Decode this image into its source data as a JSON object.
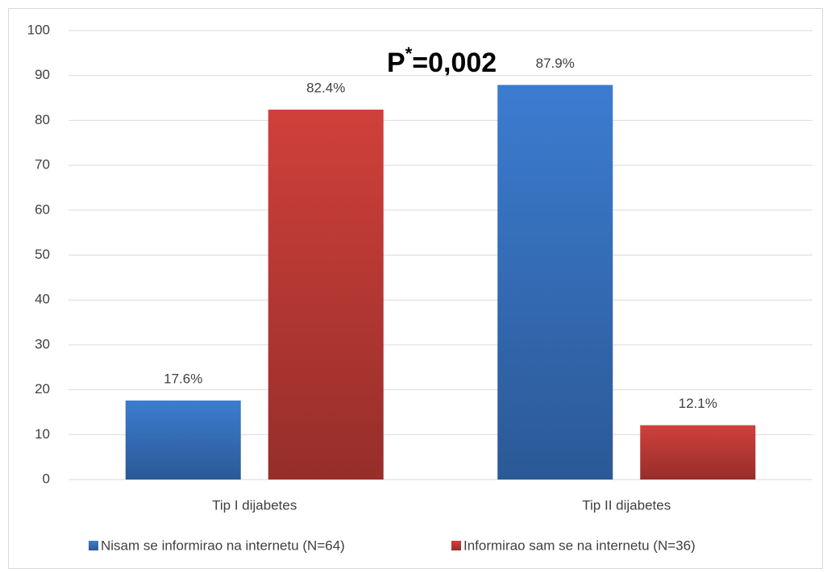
{
  "chart_data": {
    "type": "bar",
    "categories": [
      "Tip I dijabetes",
      "Tip II dijabetes"
    ],
    "series": [
      {
        "name": "Nisam se informirao na internetu (N=64)",
        "color": "#3c7cd0",
        "values": [
          17.6,
          87.9
        ],
        "value_labels": [
          "17.6%",
          "87.9%"
        ]
      },
      {
        "name": "Informirao sam se na internetu (N=36)",
        "color": "#d0403b",
        "values": [
          82.4,
          12.1
        ],
        "value_labels": [
          "82.4%",
          "12.1%"
        ]
      }
    ],
    "annotation": [
      "P",
      "*",
      "=0,002"
    ],
    "ylim": [
      0,
      100
    ],
    "yticks": [
      0,
      10,
      20,
      30,
      40,
      50,
      60,
      70,
      80,
      90,
      100
    ],
    "grid": true,
    "legend": "bottom"
  }
}
